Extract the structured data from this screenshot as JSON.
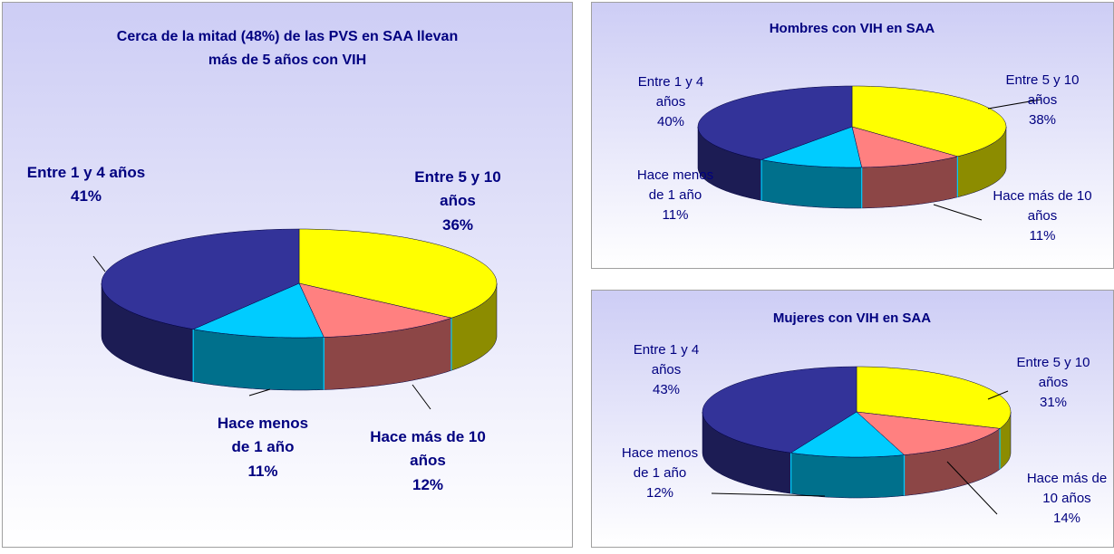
{
  "chart_data": [
    {
      "type": "pie",
      "title": "Cerca de la mitad (48%) de las PVS en SAA llevan más de 5 años con VIH",
      "categories": [
        "Entre 5 y 10 años",
        "Hace más de 10 años",
        "Hace menos de 1 año",
        "Entre 1 y 4 años"
      ],
      "values": [
        36,
        12,
        11,
        41
      ],
      "value_labels": [
        "36%",
        "12%",
        "11%",
        "41%"
      ],
      "colors": [
        "#ffff00",
        "#ff8080",
        "#00ccff",
        "#333399"
      ]
    },
    {
      "type": "pie",
      "title": "Hombres con VIH en SAA",
      "categories": [
        "Entre 5 y 10 años",
        "Hace más de 10 años",
        "Hace menos de 1 año",
        "Entre 1 y 4 años"
      ],
      "values": [
        38,
        11,
        11,
        40
      ],
      "value_labels": [
        "38%",
        "11%",
        "11%",
        "40%"
      ],
      "colors": [
        "#ffff00",
        "#ff8080",
        "#00ccff",
        "#333399"
      ]
    },
    {
      "type": "pie",
      "title": "Mujeres con VIH en SAA",
      "categories": [
        "Entre 5 y 10 años",
        "Hace más de 10 años",
        "Hace menos de 1 año",
        "Entre 1 y 4 años"
      ],
      "values": [
        31,
        14,
        12,
        43
      ],
      "value_labels": [
        "31%",
        "14%",
        "12%",
        "43%"
      ],
      "colors": [
        "#ffff00",
        "#ff8080",
        "#00ccff",
        "#333399"
      ]
    }
  ]
}
